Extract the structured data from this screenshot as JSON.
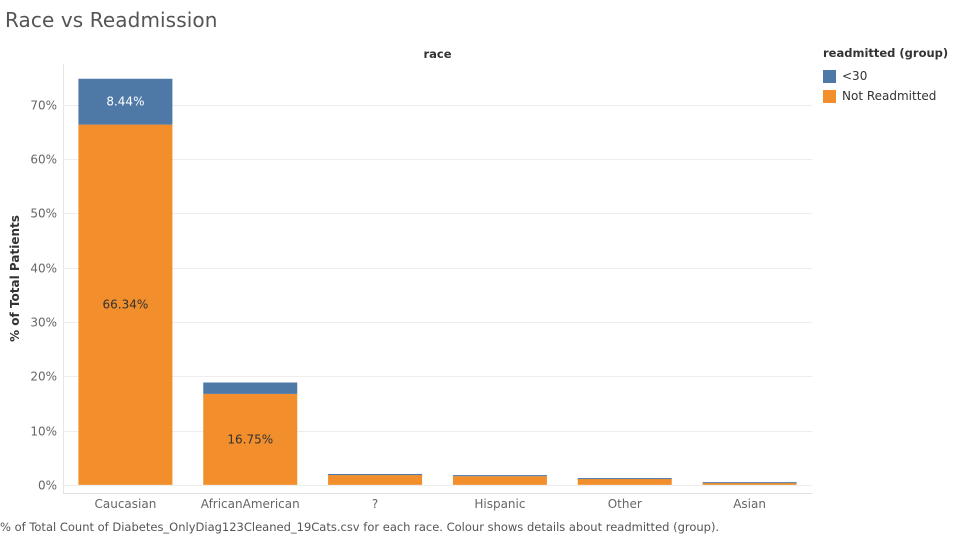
{
  "title": "Race vs Readmission",
  "caption": "% of Total Count of Diabetes_OnlyDiag123Cleaned_19Cats.csv for each race.  Colour shows details about readmitted (group).",
  "legend": {
    "title": "readmitted (group)",
    "items": [
      {
        "label": "<30",
        "color": "#4e79a7"
      },
      {
        "label": "Not Readmitted",
        "color": "#f28e2b"
      }
    ]
  },
  "chart_data": {
    "type": "bar",
    "stacked": true,
    "title": "Race vs Readmission",
    "column_header": "race",
    "xlabel": "",
    "ylabel": "% of Total Patients",
    "categories": [
      "Caucasian",
      "AfricanAmerican",
      "?",
      "Hispanic",
      "Other",
      "Asian"
    ],
    "series": [
      {
        "name": "Not Readmitted",
        "color": "#f28e2b",
        "values": [
          66.34,
          16.75,
          1.8,
          1.6,
          1.1,
          0.4
        ]
      },
      {
        "name": "<30",
        "color": "#4e79a7",
        "values": [
          8.44,
          2.1,
          0.2,
          0.2,
          0.15,
          0.1
        ]
      }
    ],
    "data_labels": [
      {
        "series": "<30",
        "category": "Caucasian",
        "text": "8.44%",
        "color": "#ffffff"
      },
      {
        "series": "Not Readmitted",
        "category": "Caucasian",
        "text": "66.34%",
        "color": "#333333"
      },
      {
        "series": "Not Readmitted",
        "category": "AfricanAmerican",
        "text": "16.75%",
        "color": "#333333"
      }
    ],
    "yticks": [
      "0%",
      "10%",
      "20%",
      "30%",
      "40%",
      "50%",
      "60%",
      "70%"
    ],
    "ytick_values": [
      0,
      10,
      20,
      30,
      40,
      50,
      60,
      70
    ],
    "ylim": [
      -1.5,
      77.5
    ],
    "grid": true,
    "legend_position": "top-right"
  }
}
